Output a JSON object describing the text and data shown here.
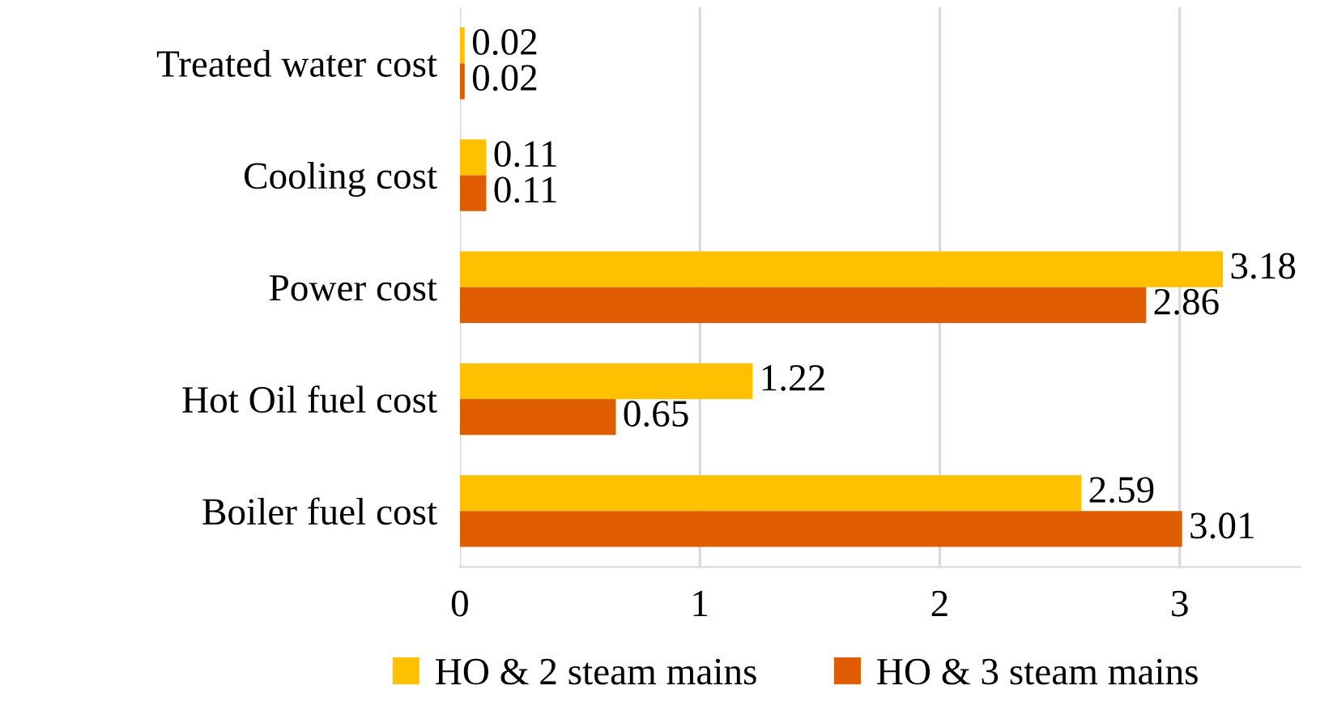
{
  "chart_data": {
    "type": "bar",
    "orientation": "horizontal",
    "categories": [
      "Treated water cost",
      "Cooling cost",
      "Power cost",
      "Hot Oil fuel cost",
      "Boiler fuel cost"
    ],
    "series": [
      {
        "name": "HO & 2 steam mains",
        "color": "#ffc000",
        "values": [
          0.02,
          0.11,
          3.18,
          1.22,
          2.59
        ]
      },
      {
        "name": "HO & 3 steam mains",
        "color": "#e05c00",
        "values": [
          0.02,
          0.11,
          2.86,
          0.65,
          3.01
        ]
      }
    ],
    "xlim": [
      0,
      3.5
    ],
    "xticks": [
      0,
      1,
      2,
      3
    ],
    "grid": "x",
    "legend": "bottom",
    "data_labels": true
  }
}
